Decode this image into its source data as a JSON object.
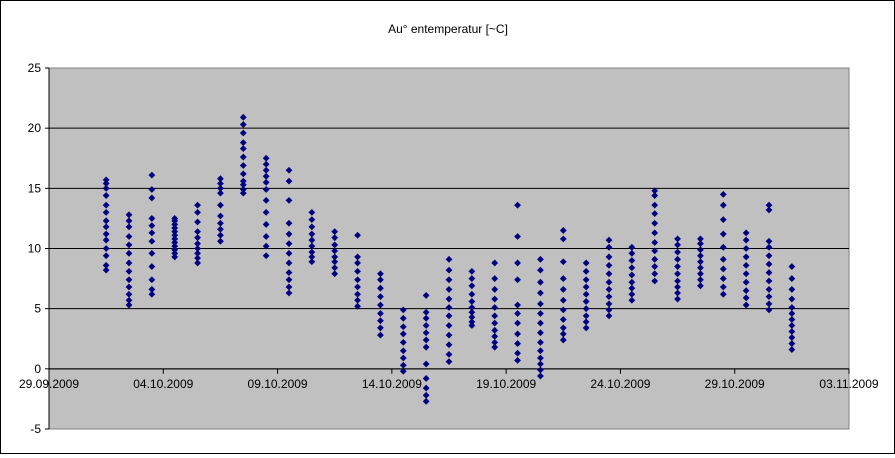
{
  "chart_data": {
    "type": "scatter",
    "title": "Au° entemperatur [~C]",
    "xlabel": "",
    "ylabel": "",
    "xlim": [
      "29.09.2009",
      "03.11.2009"
    ],
    "ylim": [
      -5,
      25
    ],
    "x_ticks": [
      "29.09.2009",
      "04.10.2009",
      "09.10.2009",
      "14.10.2009",
      "19.10.2009",
      "24.10.2009",
      "29.10.2009",
      "03.11.2009"
    ],
    "y_ticks": [
      -5,
      0,
      5,
      10,
      15,
      20,
      25
    ],
    "grid": "horizontal",
    "legend": "none",
    "plot_background": "#c0c0c0",
    "marker_color": "#000080",
    "marker": "diamond",
    "daily_readings": [
      {
        "date": "01.10.2009",
        "values": [
          8.2,
          8.6,
          9.4,
          10.0,
          10.7,
          11.2,
          11.8,
          12.3,
          13.0,
          13.6,
          14.4,
          15.0,
          15.4,
          15.7
        ]
      },
      {
        "date": "02.10.2009",
        "values": [
          5.3,
          5.7,
          6.2,
          6.8,
          7.4,
          8.1,
          8.8,
          9.6,
          10.3,
          11.0,
          11.8,
          12.3,
          12.8
        ]
      },
      {
        "date": "03.10.2009",
        "values": [
          6.2,
          6.6,
          7.4,
          8.5,
          9.6,
          10.6,
          11.3,
          11.9,
          12.5,
          14.2,
          14.9,
          16.1
        ]
      },
      {
        "date": "04.10.2009",
        "values": [
          9.3,
          9.6,
          9.9,
          10.2,
          10.5,
          10.8,
          11.1,
          11.4,
          11.7,
          12.0,
          12.3,
          12.5
        ]
      },
      {
        "date": "05.10.2009",
        "values": [
          8.8,
          9.2,
          9.6,
          10.0,
          10.4,
          10.9,
          11.4,
          12.2,
          13.0,
          13.6
        ]
      },
      {
        "date": "06.10.2009",
        "values": [
          10.6,
          11.1,
          11.6,
          12.1,
          12.7,
          13.6,
          14.6,
          15.0,
          15.4,
          15.8
        ]
      },
      {
        "date": "07.10.2009",
        "values": [
          14.6,
          14.9,
          15.3,
          15.6,
          16.2,
          16.9,
          17.6,
          18.3,
          18.8,
          19.6,
          20.3,
          20.9
        ]
      },
      {
        "date": "08.10.2009",
        "values": [
          9.4,
          10.2,
          11.0,
          12.0,
          13.0,
          14.0,
          14.9,
          15.5,
          16.0,
          16.5,
          17.0,
          17.5
        ]
      },
      {
        "date": "09.10.2009",
        "values": [
          6.3,
          6.8,
          7.4,
          8.0,
          8.8,
          9.6,
          10.4,
          11.2,
          12.1,
          14.0,
          15.6,
          16.5
        ]
      },
      {
        "date": "10.10.2009",
        "values": [
          8.9,
          9.3,
          9.7,
          10.2,
          10.7,
          11.2,
          11.8,
          12.4,
          13.0
        ]
      },
      {
        "date": "11.10.2009",
        "values": [
          7.9,
          8.4,
          8.9,
          9.3,
          9.8,
          10.3,
          10.9,
          11.4
        ]
      },
      {
        "date": "12.10.2009",
        "values": [
          5.2,
          5.7,
          6.2,
          6.8,
          7.4,
          8.1,
          8.8,
          9.3,
          11.1
        ]
      },
      {
        "date": "13.10.2009",
        "values": [
          2.8,
          3.4,
          4.0,
          4.6,
          5.3,
          6.0,
          6.7,
          7.4,
          7.9
        ]
      },
      {
        "date": "14.10.2009",
        "values": [
          -0.2,
          0.3,
          0.9,
          1.5,
          2.2,
          2.9,
          3.5,
          4.2,
          4.9
        ]
      },
      {
        "date": "15.10.2009",
        "values": [
          -2.7,
          -2.2,
          -1.6,
          -0.8,
          0.4,
          1.8,
          2.4,
          3.0,
          3.6,
          4.2,
          4.7,
          6.1
        ]
      },
      {
        "date": "16.10.2009",
        "values": [
          0.6,
          1.2,
          2.0,
          2.8,
          3.6,
          4.4,
          5.1,
          5.8,
          6.6,
          7.4,
          8.2,
          9.1
        ]
      },
      {
        "date": "17.10.2009",
        "values": [
          3.6,
          3.9,
          4.3,
          4.7,
          5.1,
          5.6,
          6.2,
          6.9,
          7.5,
          8.1
        ]
      },
      {
        "date": "18.10.2009",
        "values": [
          1.8,
          2.2,
          2.7,
          3.2,
          3.8,
          4.4,
          5.1,
          5.8,
          6.6,
          7.5,
          8.8
        ]
      },
      {
        "date": "19.10.2009",
        "values": [
          0.7,
          1.3,
          2.1,
          2.9,
          3.8,
          4.6,
          5.3,
          7.4,
          8.8,
          11.0,
          13.6
        ]
      },
      {
        "date": "20.10.2009",
        "values": [
          -0.6,
          -0.1,
          0.4,
          0.9,
          1.5,
          2.2,
          3.0,
          3.8,
          4.6,
          5.4,
          6.3,
          7.2,
          8.2,
          9.1
        ]
      },
      {
        "date": "21.10.2009",
        "values": [
          2.4,
          2.9,
          3.4,
          4.1,
          4.9,
          5.7,
          6.6,
          7.5,
          8.9,
          10.8,
          11.5
        ]
      },
      {
        "date": "22.10.2009",
        "values": [
          3.4,
          3.9,
          4.4,
          5.0,
          5.6,
          6.2,
          6.8,
          7.4,
          8.1,
          8.8
        ]
      },
      {
        "date": "23.10.2009",
        "values": [
          4.4,
          4.9,
          5.4,
          6.0,
          6.6,
          7.2,
          7.9,
          8.6,
          9.3,
          10.1,
          10.7
        ]
      },
      {
        "date": "24.10.2009",
        "values": [
          5.7,
          6.2,
          6.7,
          7.2,
          7.8,
          8.4,
          9.0,
          9.6,
          10.1
        ]
      },
      {
        "date": "25.10.2009",
        "values": [
          7.3,
          7.9,
          8.5,
          9.1,
          9.8,
          10.5,
          11.3,
          12.1,
          12.9,
          13.6,
          14.4,
          14.8
        ]
      },
      {
        "date": "26.10.2009",
        "values": [
          5.8,
          6.3,
          6.8,
          7.3,
          7.9,
          8.5,
          9.1,
          9.7,
          10.3,
          10.8
        ]
      },
      {
        "date": "27.10.2009",
        "values": [
          6.9,
          7.4,
          7.9,
          8.4,
          8.9,
          9.4,
          9.9,
          10.4,
          10.8
        ]
      },
      {
        "date": "28.10.2009",
        "values": [
          6.2,
          6.8,
          7.5,
          8.3,
          9.1,
          10.1,
          11.2,
          12.4,
          13.6,
          14.5
        ]
      },
      {
        "date": "29.10.2009",
        "values": [
          5.3,
          5.9,
          6.5,
          7.2,
          7.9,
          8.6,
          9.3,
          10.0,
          10.7,
          11.3
        ]
      },
      {
        "date": "30.10.2009",
        "values": [
          4.9,
          5.4,
          6.0,
          6.6,
          7.3,
          8.0,
          8.7,
          9.4,
          10.1,
          10.6,
          13.2,
          13.6
        ]
      },
      {
        "date": "31.10.2009",
        "values": [
          1.6,
          2.1,
          2.6,
          3.1,
          3.6,
          4.1,
          4.6,
          5.1,
          5.8,
          6.6,
          7.5,
          8.5
        ]
      }
    ]
  }
}
